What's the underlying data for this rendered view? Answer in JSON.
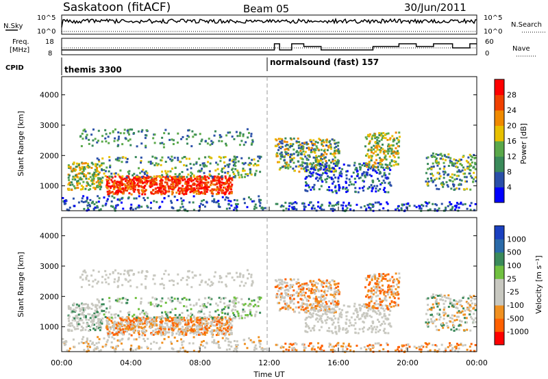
{
  "header": {
    "station": "Saskatoon (fitACF)",
    "beam": "Beam 05",
    "date": "30/Jun/2011"
  },
  "top_panel": {
    "left_label": "N.Sky",
    "right_label": "N.Search",
    "left_ticks": [
      "10^5",
      "10^0"
    ],
    "right_ticks": [
      "10^5",
      "10^0"
    ]
  },
  "freq_panel": {
    "left_label_1": "Freq.",
    "left_label_2": "[MHz]",
    "right_label": "Nave",
    "left_ticks": [
      "18",
      "8"
    ],
    "right_ticks": [
      "60",
      "0"
    ]
  },
  "cpid_panel": {
    "label": "CPID",
    "mode_1": "themis 3300",
    "mode_2": "normalsound (fast) 157"
  },
  "colors": {
    "power_scale": [
      "#0000ff",
      "#2a4fa8",
      "#3a8a5a",
      "#5aa84a",
      "#e8c000",
      "#f08a00",
      "#f04000",
      "#ff0000"
    ],
    "velocity_scale": [
      "#ff0000",
      "#ff6000",
      "#f09020",
      "#c8c8c0",
      "#c8c8c0",
      "#70c040",
      "#3a8a5a",
      "#2a6aa8",
      "#1a40c0"
    ]
  },
  "chart_data": [
    {
      "type": "heatmap",
      "name": "power",
      "ylabel": "Slant Range [km]",
      "colorbar_label": "Power [dB]",
      "colorbar_ticks": [
        "28",
        "24",
        "20",
        "16",
        "12",
        "8",
        "4"
      ],
      "y_ticks": [
        "4000",
        "3000",
        "2000",
        "1000"
      ],
      "ylim": [
        180,
        4600
      ],
      "x_ticks": [
        "00:00",
        "04:00",
        "08:00",
        "12:00",
        "16:00",
        "20:00",
        "00:00"
      ]
    },
    {
      "type": "heatmap",
      "name": "velocity",
      "ylabel": "Slant Range [km]",
      "colorbar_label": "Velocity [m s⁻¹]",
      "colorbar_ticks": [
        "1000",
        "500",
        "100",
        "25",
        "-25",
        "-100",
        "-500",
        "-1000"
      ],
      "y_ticks": [
        "4000",
        "3000",
        "2000",
        "1000"
      ],
      "ylim": [
        180,
        4600
      ],
      "x_ticks": [
        "00:00",
        "04:00",
        "08:00",
        "12:00",
        "16:00",
        "20:00",
        "00:00"
      ],
      "xlabel": "Time UT"
    }
  ]
}
